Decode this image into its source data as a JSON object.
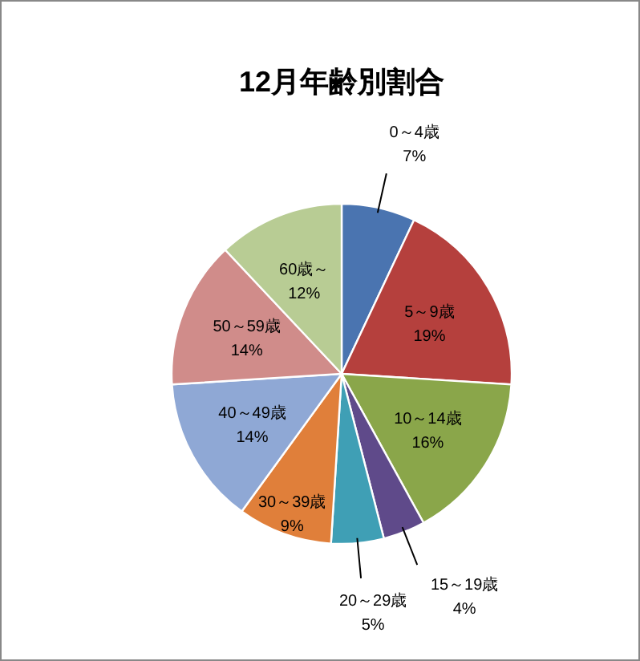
{
  "chart_data": {
    "type": "pie",
    "title": "12月年齢別割合",
    "categories": [
      "0～4歳",
      "5～9歳",
      "10～14歳",
      "15～19歳",
      "20～29歳",
      "30～39歳",
      "40～49歳",
      "50～59歳",
      "60歳～"
    ],
    "values": [
      7,
      19,
      16,
      4,
      5,
      9,
      14,
      14,
      12
    ],
    "value_labels": [
      "7%",
      "19%",
      "16%",
      "4%",
      "5%",
      "9%",
      "14%",
      "14%",
      "12%"
    ],
    "colors": [
      "#4a74b0",
      "#b5403d",
      "#8aa64a",
      "#5f4a8a",
      "#3f9fb5",
      "#e07f3a",
      "#8fa8d5",
      "#d08c8a",
      "#b8cc94"
    ]
  }
}
